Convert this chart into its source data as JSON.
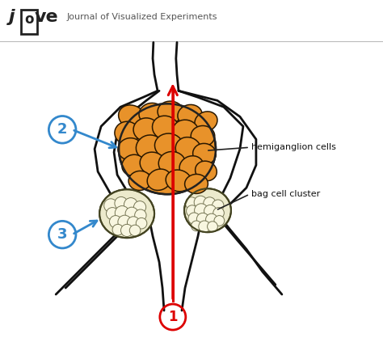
{
  "bg_color": "#ffffff",
  "jove_text": "Journal of Visualized Experiments",
  "label_hemi": "hemiganglion cells",
  "label_bag": "bag cell cluster",
  "orange_fill": "#E8922A",
  "bag_fill": "#eceacc",
  "nerve_color": "#111111",
  "red_color": "#dd0000",
  "blue_color": "#3388cc"
}
